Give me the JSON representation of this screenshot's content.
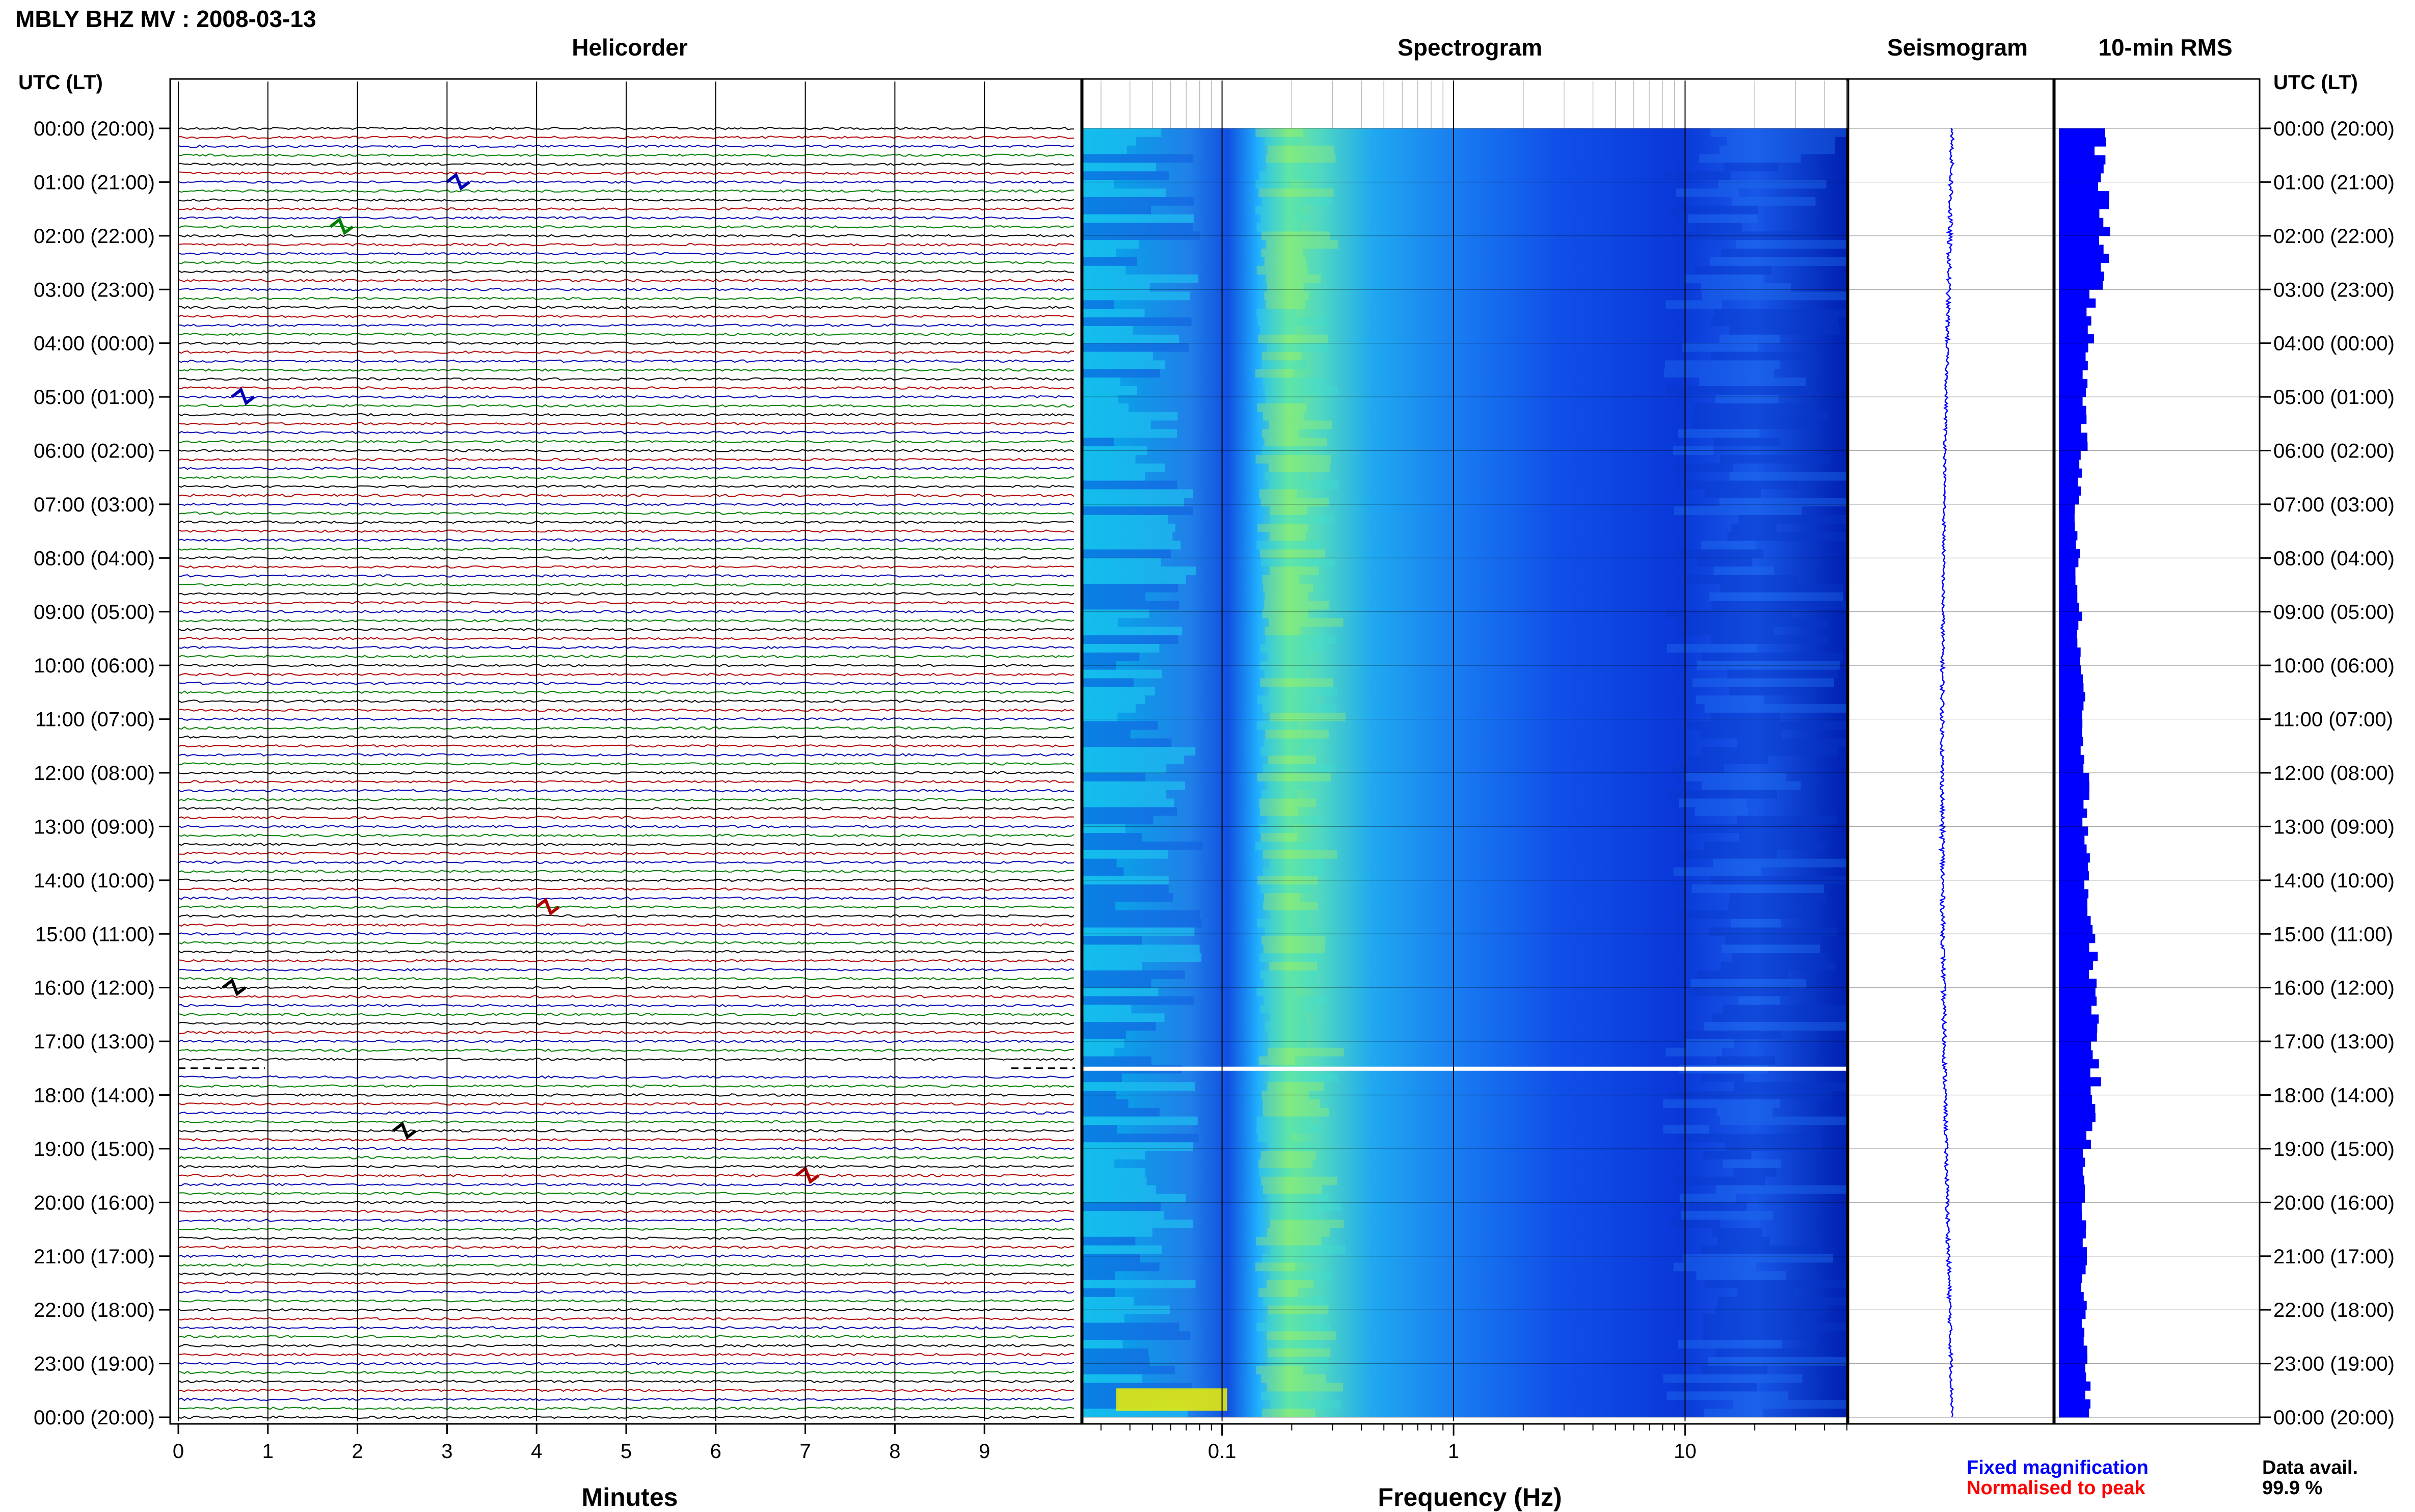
{
  "header": {
    "title": "MBLY BHZ MV : 2008-03-13",
    "panel_titles": [
      "Helicorder",
      "Spectrogram",
      "Seismogram",
      "10-min RMS"
    ],
    "utc_label_left": "UTC (LT)",
    "utc_label_right": "UTC (LT)"
  },
  "footer": {
    "fixed_magnification": "Fixed magnification",
    "normalised_to_peak": "Normalised to peak",
    "data_avail_label": "Data avail.",
    "data_avail_value": "99.9 %"
  },
  "colors": {
    "trace_cycle": [
      "#000000",
      "#b30000",
      "#0000b3",
      "#008000"
    ],
    "seismogram": "#0000ff",
    "rms": "#0000ff",
    "fixed_magnification": "#0000ff",
    "normalised_to_peak": "#ff0000"
  },
  "chart_data": [
    {
      "type": "line",
      "name": "Helicorder",
      "title": "Helicorder",
      "xlabel": "Minutes",
      "xlim": [
        0,
        10
      ],
      "xticks": [
        0,
        1,
        2,
        3,
        4,
        5,
        6,
        7,
        8,
        9
      ],
      "y_hours": [
        "00:00 (20:00)",
        "01:00 (21:00)",
        "02:00 (22:00)",
        "03:00 (23:00)",
        "04:00 (00:00)",
        "05:00 (01:00)",
        "06:00 (02:00)",
        "07:00 (03:00)",
        "08:00 (04:00)",
        "09:00 (05:00)",
        "10:00 (06:00)",
        "11:00 (07:00)",
        "12:00 (08:00)",
        "13:00 (09:00)",
        "14:00 (10:00)",
        "15:00 (11:00)",
        "16:00 (12:00)",
        "17:00 (13:00)",
        "18:00 (14:00)",
        "19:00 (15:00)",
        "20:00 (16:00)",
        "21:00 (17:00)",
        "22:00 (18:00)",
        "23:00 (19:00)",
        "00:00 (20:00)"
      ],
      "traces_per_hour": 6,
      "events": [
        {
          "hour": 1.0,
          "minute": 3.1,
          "series": "blue"
        },
        {
          "hour": 1.83,
          "minute": 1.8,
          "series": "green"
        },
        {
          "hour": 5.0,
          "minute": 0.7,
          "series": "blue"
        },
        {
          "hour": 14.5,
          "minute": 4.1,
          "series": "red"
        },
        {
          "hour": 16.0,
          "minute": 0.6,
          "series": "black"
        },
        {
          "hour": 18.67,
          "minute": 2.5,
          "series": "black"
        },
        {
          "hour": 19.5,
          "minute": 7.0,
          "series": "red"
        }
      ],
      "data_gap": {
        "hour": 17.5
      }
    },
    {
      "type": "heatmap",
      "name": "Spectrogram",
      "title": "Spectrogram",
      "xlabel": "Frequency (Hz)",
      "x_scale": "log",
      "xlim": [
        0.025,
        50
      ],
      "xticks": [
        0.1,
        1,
        10
      ],
      "colormap": "jet",
      "ridge_hz": [
        0.15,
        0.35
      ],
      "bright_low_freq": {
        "hour": 23.5,
        "hz": [
          0.03,
          0.1
        ]
      },
      "data_gap": {
        "hour": 17.5
      }
    },
    {
      "type": "line",
      "name": "Seismogram",
      "title": "Seismogram",
      "orientation": "vertical",
      "amplitude": [
        0.2,
        0.25,
        0.22,
        0.2,
        0.15,
        0.15,
        0.12,
        0.15,
        0.15,
        0.18,
        0.2,
        0.18,
        0.2,
        0.25,
        0.22,
        0.2,
        0.22,
        0.2,
        0.18,
        0.18,
        0.2,
        0.2,
        0.18,
        0.15
      ]
    },
    {
      "type": "bar",
      "name": "10-min RMS",
      "title": "10-min RMS",
      "orientation": "horizontal",
      "interval_minutes": 10,
      "hourly_values": [
        0.9,
        1.0,
        0.95,
        0.7,
        0.6,
        0.55,
        0.45,
        0.4,
        0.4,
        0.45,
        0.5,
        0.5,
        0.6,
        0.65,
        0.65,
        0.75,
        0.8,
        0.8,
        0.7,
        0.6,
        0.55,
        0.55,
        0.55,
        0.65
      ]
    }
  ]
}
